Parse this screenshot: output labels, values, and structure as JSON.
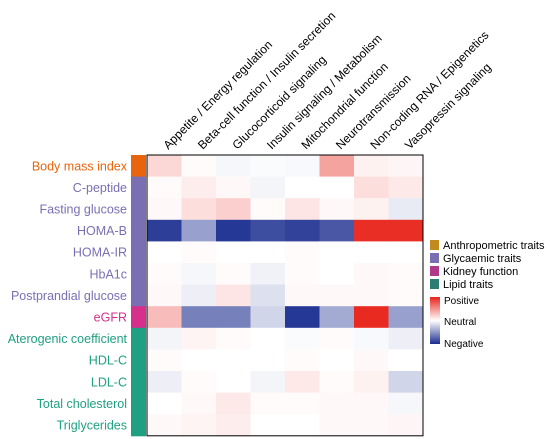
{
  "chart_data": {
    "type": "heatmap",
    "columns": [
      "Appetite / Energy regulation",
      "Beta-cell function / Insulin secretion",
      "Glucocorticoid signaling",
      "Insulin signaling / Metabolism",
      "Mitochondrial function",
      "Neurotransmission",
      "Non-coding RNA / Epigenetics",
      "Vasopressin signaling"
    ],
    "rows": [
      {
        "label": "Body mass index",
        "group": "Anthropometric traits",
        "values": [
          0.18,
          0.02,
          -0.04,
          -0.02,
          -0.03,
          0.42,
          0.06,
          0.04
        ]
      },
      {
        "label": "C-peptide",
        "group": "Glycaemic traits",
        "values": [
          0.02,
          0.08,
          0.03,
          -0.05,
          0.0,
          0.0,
          0.15,
          0.1
        ]
      },
      {
        "label": "Fasting glucose",
        "group": "Glycaemic traits",
        "values": [
          0.03,
          0.15,
          0.22,
          0.02,
          0.12,
          0.03,
          0.06,
          -0.1
        ]
      },
      {
        "label": "HOMA-B",
        "group": "Glycaemic traits",
        "values": [
          -0.92,
          -0.45,
          -0.95,
          -0.85,
          -0.9,
          -0.8,
          0.95,
          0.95
        ]
      },
      {
        "label": "HOMA-IR",
        "group": "Glycaemic traits",
        "values": [
          0.0,
          0.02,
          0.0,
          0.0,
          0.02,
          0.0,
          0.0,
          0.0
        ]
      },
      {
        "label": "HbA1c",
        "group": "Glycaemic traits",
        "values": [
          0.02,
          -0.04,
          0.02,
          -0.06,
          0.02,
          0.0,
          0.03,
          0.02
        ]
      },
      {
        "label": "Postprandial glucose",
        "group": "Glycaemic traits",
        "values": [
          0.03,
          -0.08,
          0.12,
          -0.15,
          0.03,
          0.03,
          0.03,
          0.02
        ]
      },
      {
        "label": "eGFR",
        "group": "Kidney function",
        "values": [
          0.3,
          -0.6,
          -0.6,
          -0.2,
          -0.95,
          -0.4,
          0.97,
          -0.45
        ]
      },
      {
        "label": "Aterogenic coefficient",
        "group": "Lipid traits",
        "values": [
          -0.05,
          0.05,
          0.02,
          0.0,
          -0.02,
          0.02,
          -0.03,
          -0.08
        ]
      },
      {
        "label": "HDL-C",
        "group": "Lipid traits",
        "values": [
          0.02,
          0.0,
          0.0,
          0.0,
          0.02,
          0.0,
          0.03,
          0.0
        ]
      },
      {
        "label": "LDL-C",
        "group": "Lipid traits",
        "values": [
          -0.08,
          0.02,
          0.0,
          -0.05,
          0.1,
          0.02,
          0.06,
          -0.2
        ]
      },
      {
        "label": "Total cholesterol",
        "group": "Lipid traits",
        "values": [
          0.0,
          0.03,
          0.1,
          0.02,
          0.02,
          0.03,
          0.03,
          -0.04
        ]
      },
      {
        "label": "Triglycerides",
        "group": "Lipid traits",
        "values": [
          0.03,
          0.05,
          0.08,
          0.0,
          0.0,
          0.03,
          0.03,
          0.04
        ]
      }
    ],
    "value_range": [
      -1,
      1
    ],
    "legend_groups": [
      {
        "name": "Anthropometric traits",
        "color": "#E8650E",
        "swatch": "#C08A1E"
      },
      {
        "name": "Glycaemic traits",
        "color": "#7B6FB3",
        "swatch": "#7B6FB3"
      },
      {
        "name": "Kidney function",
        "color": "#D6308C",
        "swatch": "#B03A8A"
      },
      {
        "name": "Lipid traits",
        "color": "#1FA083",
        "swatch": "#2E7D74"
      }
    ],
    "colorbar": {
      "positive_label": "Positive",
      "neutral_label": "Neutral",
      "negative_label": "Negative",
      "positive_color": "#E8231A",
      "neutral_color": "#FFFFFF",
      "negative_color": "#1B2D8F"
    },
    "grid": false,
    "legend_position": "right"
  }
}
